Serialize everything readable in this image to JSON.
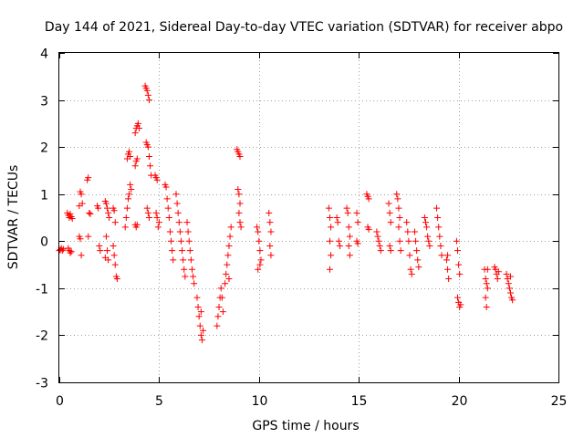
{
  "chart_data": {
    "type": "scatter",
    "title": "Day 144 of 2021, Sidereal Day-to-day VTEC variation (SDTVAR) for receiver abpo",
    "xlabel": "GPS time / hours",
    "ylabel": "SDTVAR / TECUs",
    "xlim": [
      0,
      25
    ],
    "ylim": [
      -3,
      4
    ],
    "xticks": [
      "0",
      "5",
      "10",
      "15",
      "20",
      "25"
    ],
    "yticks": [
      "-3",
      "-2",
      "-1",
      "0",
      "1",
      "2",
      "3",
      "4"
    ],
    "grid": true,
    "marker": "+",
    "color": "#ff0000",
    "series": [
      {
        "name": "SDTVAR",
        "points": [
          [
            0.0,
            -0.2
          ],
          [
            0.05,
            -0.18
          ],
          [
            0.1,
            -0.15
          ],
          [
            0.15,
            -0.2
          ],
          [
            0.2,
            -0.17
          ],
          [
            0.4,
            0.6
          ],
          [
            0.45,
            0.55
          ],
          [
            0.5,
            0.5
          ],
          [
            0.55,
            0.58
          ],
          [
            0.6,
            0.52
          ],
          [
            0.65,
            0.48
          ],
          [
            0.45,
            -0.15
          ],
          [
            0.5,
            -0.2
          ],
          [
            0.55,
            -0.25
          ],
          [
            0.6,
            -0.22
          ],
          [
            1.0,
            0.75
          ],
          [
            1.05,
            1.05
          ],
          [
            1.1,
            1.0
          ],
          [
            1.15,
            0.8
          ],
          [
            1.0,
            0.1
          ],
          [
            1.05,
            0.05
          ],
          [
            1.1,
            -0.3
          ],
          [
            1.4,
            1.3
          ],
          [
            1.45,
            1.35
          ],
          [
            1.5,
            0.6
          ],
          [
            1.55,
            0.58
          ],
          [
            1.45,
            0.1
          ],
          [
            1.9,
            0.75
          ],
          [
            1.95,
            0.7
          ],
          [
            2.0,
            -0.1
          ],
          [
            2.05,
            -0.2
          ],
          [
            2.3,
            0.85
          ],
          [
            2.35,
            0.8
          ],
          [
            2.4,
            0.7
          ],
          [
            2.45,
            0.6
          ],
          [
            2.5,
            0.5
          ],
          [
            2.35,
            0.1
          ],
          [
            2.4,
            -0.2
          ],
          [
            2.45,
            -0.4
          ],
          [
            2.3,
            -0.35
          ],
          [
            2.7,
            0.7
          ],
          [
            2.75,
            0.65
          ],
          [
            2.8,
            0.4
          ],
          [
            2.7,
            -0.1
          ],
          [
            2.75,
            -0.3
          ],
          [
            2.8,
            -0.5
          ],
          [
            2.85,
            -0.75
          ],
          [
            2.9,
            -0.8
          ],
          [
            3.3,
            0.3
          ],
          [
            3.35,
            0.5
          ],
          [
            3.4,
            0.7
          ],
          [
            3.45,
            0.9
          ],
          [
            3.5,
            1.0
          ],
          [
            3.55,
            1.2
          ],
          [
            3.6,
            1.1
          ],
          [
            3.4,
            1.75
          ],
          [
            3.45,
            1.85
          ],
          [
            3.5,
            1.9
          ],
          [
            3.55,
            1.8
          ],
          [
            3.8,
            2.3
          ],
          [
            3.85,
            2.4
          ],
          [
            3.9,
            2.45
          ],
          [
            3.95,
            2.5
          ],
          [
            4.0,
            2.4
          ],
          [
            3.8,
            1.6
          ],
          [
            3.85,
            1.7
          ],
          [
            3.9,
            1.75
          ],
          [
            3.8,
            0.35
          ],
          [
            3.85,
            0.3
          ],
          [
            3.9,
            0.35
          ],
          [
            4.3,
            3.3
          ],
          [
            4.35,
            3.25
          ],
          [
            4.4,
            3.2
          ],
          [
            4.45,
            3.1
          ],
          [
            4.5,
            3.0
          ],
          [
            4.35,
            2.1
          ],
          [
            4.4,
            2.05
          ],
          [
            4.45,
            2.0
          ],
          [
            4.5,
            1.8
          ],
          [
            4.55,
            1.6
          ],
          [
            4.6,
            1.4
          ],
          [
            4.4,
            0.7
          ],
          [
            4.45,
            0.6
          ],
          [
            4.5,
            0.5
          ],
          [
            4.8,
            1.4
          ],
          [
            4.85,
            1.35
          ],
          [
            4.9,
            1.3
          ],
          [
            4.85,
            0.6
          ],
          [
            4.9,
            0.5
          ],
          [
            4.95,
            0.3
          ],
          [
            5.0,
            0.4
          ],
          [
            5.3,
            1.2
          ],
          [
            5.35,
            1.15
          ],
          [
            5.4,
            0.9
          ],
          [
            5.45,
            0.7
          ],
          [
            5.5,
            0.5
          ],
          [
            5.55,
            0.2
          ],
          [
            5.6,
            0.0
          ],
          [
            5.65,
            -0.2
          ],
          [
            5.7,
            -0.4
          ],
          [
            5.85,
            1.0
          ],
          [
            5.9,
            0.8
          ],
          [
            5.95,
            0.6
          ],
          [
            6.0,
            0.4
          ],
          [
            6.05,
            0.2
          ],
          [
            6.1,
            0.0
          ],
          [
            6.15,
            -0.2
          ],
          [
            6.2,
            -0.4
          ],
          [
            6.25,
            -0.6
          ],
          [
            6.3,
            -0.75
          ],
          [
            6.4,
            0.4
          ],
          [
            6.45,
            0.2
          ],
          [
            6.5,
            0.0
          ],
          [
            6.55,
            -0.2
          ],
          [
            6.6,
            -0.4
          ],
          [
            6.65,
            -0.6
          ],
          [
            6.7,
            -0.75
          ],
          [
            6.75,
            -0.9
          ],
          [
            6.9,
            -1.2
          ],
          [
            6.95,
            -1.4
          ],
          [
            7.0,
            -1.6
          ],
          [
            7.05,
            -1.8
          ],
          [
            7.1,
            -2.0
          ],
          [
            7.15,
            -2.1
          ],
          [
            7.2,
            -1.9
          ],
          [
            7.1,
            -1.5
          ],
          [
            7.9,
            -1.8
          ],
          [
            7.95,
            -1.6
          ],
          [
            8.0,
            -1.4
          ],
          [
            8.05,
            -1.2
          ],
          [
            8.1,
            -1.0
          ],
          [
            8.15,
            -1.2
          ],
          [
            8.2,
            -1.5
          ],
          [
            8.3,
            -0.9
          ],
          [
            8.35,
            -0.7
          ],
          [
            8.4,
            -0.5
          ],
          [
            8.45,
            -0.3
          ],
          [
            8.5,
            -0.1
          ],
          [
            8.55,
            0.1
          ],
          [
            8.6,
            0.3
          ],
          [
            8.5,
            -0.8
          ],
          [
            8.9,
            1.95
          ],
          [
            8.95,
            1.9
          ],
          [
            9.0,
            1.85
          ],
          [
            9.05,
            1.8
          ],
          [
            8.95,
            1.1
          ],
          [
            9.0,
            1.0
          ],
          [
            9.05,
            0.8
          ],
          [
            9.0,
            0.6
          ],
          [
            9.05,
            0.4
          ],
          [
            9.1,
            0.3
          ],
          [
            9.9,
            0.3
          ],
          [
            9.95,
            0.2
          ],
          [
            10.0,
            0.0
          ],
          [
            10.05,
            -0.2
          ],
          [
            10.1,
            -0.4
          ],
          [
            9.95,
            -0.6
          ],
          [
            10.05,
            -0.5
          ],
          [
            10.5,
            0.6
          ],
          [
            10.55,
            0.4
          ],
          [
            10.6,
            0.2
          ],
          [
            10.55,
            -0.1
          ],
          [
            10.6,
            -0.3
          ],
          [
            13.5,
            0.7
          ],
          [
            13.55,
            0.5
          ],
          [
            13.6,
            0.3
          ],
          [
            13.55,
            0.0
          ],
          [
            13.6,
            -0.3
          ],
          [
            13.55,
            -0.6
          ],
          [
            13.9,
            0.5
          ],
          [
            13.95,
            0.4
          ],
          [
            14.0,
            0.0
          ],
          [
            14.05,
            -0.1
          ],
          [
            14.4,
            0.7
          ],
          [
            14.45,
            0.6
          ],
          [
            14.5,
            0.3
          ],
          [
            14.55,
            0.1
          ],
          [
            14.5,
            -0.1
          ],
          [
            14.55,
            -0.3
          ],
          [
            14.9,
            0.6
          ],
          [
            14.95,
            0.4
          ],
          [
            14.9,
            0.0
          ],
          [
            14.95,
            -0.05
          ],
          [
            15.4,
            1.0
          ],
          [
            15.45,
            0.95
          ],
          [
            15.5,
            0.9
          ],
          [
            15.45,
            0.3
          ],
          [
            15.5,
            0.25
          ],
          [
            15.9,
            0.2
          ],
          [
            15.95,
            0.1
          ],
          [
            16.0,
            0.0
          ],
          [
            16.05,
            -0.1
          ],
          [
            16.1,
            -0.2
          ],
          [
            16.5,
            0.8
          ],
          [
            16.55,
            0.6
          ],
          [
            16.6,
            0.4
          ],
          [
            16.55,
            -0.1
          ],
          [
            16.6,
            -0.2
          ],
          [
            16.9,
            1.0
          ],
          [
            16.95,
            0.9
          ],
          [
            17.0,
            0.7
          ],
          [
            17.05,
            0.5
          ],
          [
            17.0,
            0.3
          ],
          [
            17.05,
            0.0
          ],
          [
            17.1,
            -0.2
          ],
          [
            17.4,
            0.4
          ],
          [
            17.45,
            0.2
          ],
          [
            17.5,
            0.0
          ],
          [
            17.55,
            -0.3
          ],
          [
            17.6,
            -0.6
          ],
          [
            17.65,
            -0.7
          ],
          [
            17.8,
            0.2
          ],
          [
            17.85,
            0.0
          ],
          [
            17.9,
            -0.2
          ],
          [
            17.95,
            -0.4
          ],
          [
            18.0,
            -0.55
          ],
          [
            18.3,
            0.5
          ],
          [
            18.35,
            0.4
          ],
          [
            18.4,
            0.3
          ],
          [
            18.45,
            0.1
          ],
          [
            18.5,
            0.0
          ],
          [
            18.55,
            -0.1
          ],
          [
            18.9,
            0.7
          ],
          [
            18.95,
            0.5
          ],
          [
            19.0,
            0.3
          ],
          [
            19.05,
            0.1
          ],
          [
            19.1,
            -0.1
          ],
          [
            19.15,
            -0.3
          ],
          [
            19.4,
            -0.4
          ],
          [
            19.45,
            -0.6
          ],
          [
            19.5,
            -0.8
          ],
          [
            19.45,
            -0.3
          ],
          [
            19.9,
            0.0
          ],
          [
            19.95,
            -0.2
          ],
          [
            20.0,
            -0.5
          ],
          [
            20.05,
            -0.7
          ],
          [
            19.95,
            -1.2
          ],
          [
            20.0,
            -1.3
          ],
          [
            20.05,
            -1.4
          ],
          [
            20.1,
            -1.35
          ],
          [
            21.3,
            -0.6
          ],
          [
            21.35,
            -0.8
          ],
          [
            21.4,
            -0.9
          ],
          [
            21.45,
            -1.0
          ],
          [
            21.35,
            -1.2
          ],
          [
            21.4,
            -1.4
          ],
          [
            21.45,
            -0.6
          ],
          [
            21.8,
            -0.55
          ],
          [
            21.85,
            -0.6
          ],
          [
            21.9,
            -0.7
          ],
          [
            21.95,
            -0.8
          ],
          [
            22.0,
            -0.65
          ],
          [
            22.4,
            -0.7
          ],
          [
            22.45,
            -0.8
          ],
          [
            22.5,
            -0.9
          ],
          [
            22.55,
            -1.0
          ],
          [
            22.6,
            -1.1
          ],
          [
            22.65,
            -1.2
          ],
          [
            22.7,
            -1.25
          ],
          [
            22.6,
            -0.75
          ]
        ]
      }
    ]
  }
}
